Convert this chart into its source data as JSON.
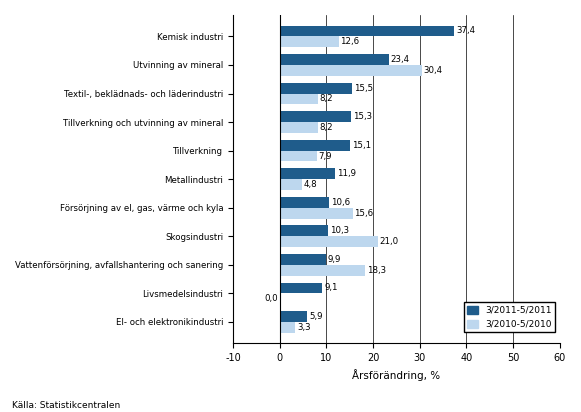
{
  "categories": [
    "Kemisk industri",
    "Utvinning av mineral",
    "Textil-, beklädnads- och läderindustri",
    "Tillverkning och utvinning av mineral",
    "Tillverkning",
    "Metallindustri",
    "Försörjning av el, gas, värme och kyla",
    "Skogsindustri",
    "Vattenförsörjning, avfallshantering och sanering",
    "Livsmedelsindustri",
    "El- och elektronikindustri"
  ],
  "values_2011": [
    37.4,
    23.4,
    15.5,
    15.3,
    15.1,
    11.9,
    10.6,
    10.3,
    9.9,
    9.1,
    5.9
  ],
  "values_2010": [
    12.6,
    30.4,
    8.2,
    8.2,
    7.9,
    4.8,
    15.6,
    21.0,
    18.3,
    0.0,
    3.3
  ],
  "labels_2011": [
    "37,4",
    "23,4",
    "15,5",
    "15,3",
    "15,1",
    "11,9",
    "10,6",
    "10,3",
    "9,9",
    "9,1",
    "5,9"
  ],
  "labels_2010": [
    "12,6",
    "30,4",
    "8,2",
    "8,2",
    "7,9",
    "4,8",
    "15,6",
    "21,0",
    "18,3",
    "0,0",
    "3,3"
  ],
  "color_2011": "#1F5C8B",
  "color_2010": "#BDD7EE",
  "xlabel": "Årsförändring, %",
  "legend_2011": "3/2011-5/2011",
  "legend_2010": "3/2010-5/2010",
  "source": "Källa: Statistikcentralen",
  "xlim": [
    -10,
    60
  ],
  "xticks": [
    -10,
    0,
    10,
    20,
    30,
    40,
    50,
    60
  ]
}
